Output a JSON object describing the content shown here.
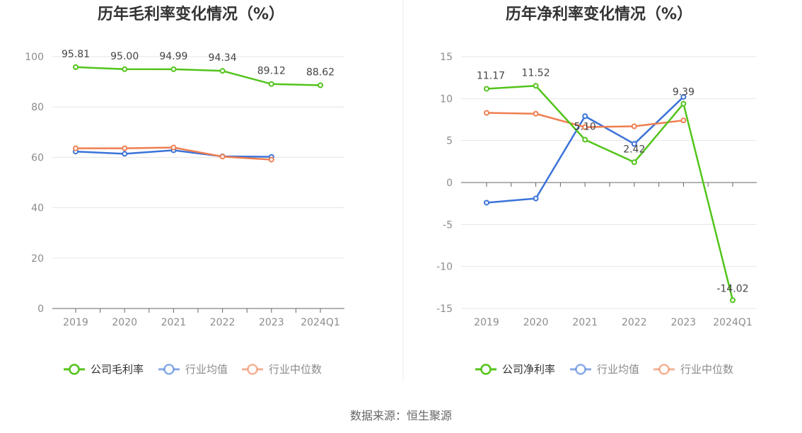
{
  "source_text": "数据来源：恒生聚源",
  "chart_data": [
    {
      "type": "line",
      "title": "历年毛利率变化情况（%）",
      "categories": [
        "2019",
        "2020",
        "2021",
        "2022",
        "2023",
        "2024Q1"
      ],
      "ylim": [
        0,
        100
      ],
      "yticks": [
        0,
        20,
        40,
        60,
        80,
        100
      ],
      "grid": true,
      "legend_position": "bottom",
      "series": [
        {
          "name": "公司毛利率",
          "color": "#52c41a",
          "values": [
            95.81,
            95.0,
            94.99,
            94.34,
            89.12,
            88.62
          ],
          "labels": [
            "95.81",
            "95.00",
            "94.99",
            "94.34",
            "89.12",
            "88.62"
          ]
        },
        {
          "name": "行业均值",
          "color": "#3b73d8",
          "values": [
            62.3,
            61.4,
            62.8,
            60.4,
            60.2,
            null
          ],
          "labels": []
        },
        {
          "name": "行业中位数",
          "color": "#ef7e50",
          "values": [
            63.6,
            63.6,
            63.9,
            60.3,
            59.1,
            null
          ],
          "labels": []
        }
      ]
    },
    {
      "type": "line",
      "title": "历年净利率变化情况（%）",
      "categories": [
        "2019",
        "2020",
        "2021",
        "2022",
        "2023",
        "2024Q1"
      ],
      "ylim": [
        -15,
        15
      ],
      "yticks": [
        -15,
        -10,
        -5,
        0,
        5,
        10,
        15
      ],
      "grid": true,
      "legend_position": "bottom",
      "series": [
        {
          "name": "公司净利率",
          "color": "#52c41a",
          "values": [
            11.17,
            11.52,
            5.1,
            2.42,
            9.39,
            -14.02
          ],
          "labels": [
            "11.17",
            "11.52",
            "5.10",
            "2.42",
            "9.39",
            "-14.02"
          ]
        },
        {
          "name": "行业均值",
          "color": "#3b73d8",
          "values": [
            -2.4,
            -1.9,
            7.9,
            4.6,
            10.2,
            null
          ],
          "labels": []
        },
        {
          "name": "行业中位数",
          "color": "#ef7e50",
          "values": [
            8.3,
            8.2,
            6.6,
            6.7,
            7.4,
            null
          ],
          "labels": []
        }
      ]
    }
  ]
}
